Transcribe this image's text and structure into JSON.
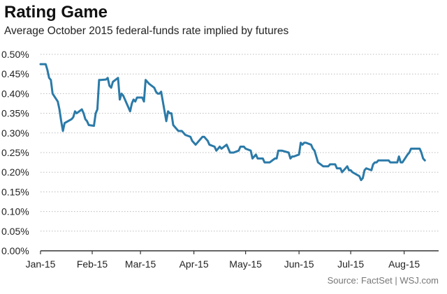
{
  "title": "Rating Game",
  "subtitle": "Average October 2015 federal-funds rate implied by futures",
  "source": "Source: FactSet  |  WSJ.com",
  "colors": {
    "line": "#2b7aa8",
    "grid": "#bbbbbb",
    "axis": "#333333"
  },
  "chart_data": {
    "type": "line",
    "title": "Rating Game",
    "subtitle": "Average October 2015 federal-funds rate implied by futures",
    "xlabel": "",
    "ylabel": "",
    "ylim": [
      0,
      0.5
    ],
    "grid": "horizontal dotted",
    "yticks": [
      0.0,
      0.05,
      0.1,
      0.15,
      0.2,
      0.25,
      0.3,
      0.35,
      0.4,
      0.45,
      0.5
    ],
    "ytick_labels": [
      "0.00%",
      "0.05%",
      "0.10%",
      "0.15%",
      "0.20%",
      "0.25%",
      "0.30%",
      "0.35%",
      "0.40%",
      "0.45%",
      "0.50%"
    ],
    "xticks": [
      "Jan-15",
      "Feb-15",
      "Mar-15",
      "Apr-15",
      "May-15",
      "Jun-15",
      "Jul-15",
      "Aug-15"
    ],
    "x_start": "2015-01-02",
    "x_end": "2015-08-21",
    "series": [
      {
        "points": [
          [
            "2015-01-02",
            0.475
          ],
          [
            "2015-01-05",
            0.475
          ],
          [
            "2015-01-06",
            0.46
          ],
          [
            "2015-01-07",
            0.44
          ],
          [
            "2015-01-08",
            0.435
          ],
          [
            "2015-01-09",
            0.4
          ],
          [
            "2015-01-12",
            0.38
          ],
          [
            "2015-01-13",
            0.36
          ],
          [
            "2015-01-14",
            0.33
          ],
          [
            "2015-01-15",
            0.305
          ],
          [
            "2015-01-16",
            0.325
          ],
          [
            "2015-01-20",
            0.335
          ],
          [
            "2015-01-21",
            0.34
          ],
          [
            "2015-01-22",
            0.355
          ],
          [
            "2015-01-23",
            0.35
          ],
          [
            "2015-01-26",
            0.36
          ],
          [
            "2015-01-27",
            0.35
          ],
          [
            "2015-01-28",
            0.335
          ],
          [
            "2015-01-29",
            0.33
          ],
          [
            "2015-01-30",
            0.32
          ],
          [
            "2015-02-02",
            0.318
          ],
          [
            "2015-02-03",
            0.35
          ],
          [
            "2015-02-04",
            0.36
          ],
          [
            "2015-02-05",
            0.435
          ],
          [
            "2015-02-06",
            0.435
          ],
          [
            "2015-02-09",
            0.436
          ],
          [
            "2015-02-10",
            0.44
          ],
          [
            "2015-02-11",
            0.42
          ],
          [
            "2015-02-12",
            0.415
          ],
          [
            "2015-02-13",
            0.43
          ],
          [
            "2015-02-16",
            0.44
          ],
          [
            "2015-02-17",
            0.385
          ],
          [
            "2015-02-18",
            0.4
          ],
          [
            "2015-02-19",
            0.395
          ],
          [
            "2015-02-20",
            0.385
          ],
          [
            "2015-02-23",
            0.355
          ],
          [
            "2015-02-24",
            0.375
          ],
          [
            "2015-02-25",
            0.385
          ],
          [
            "2015-02-26",
            0.38
          ],
          [
            "2015-02-27",
            0.39
          ],
          [
            "2015-03-02",
            0.39
          ],
          [
            "2015-03-03",
            0.38
          ],
          [
            "2015-03-04",
            0.435
          ],
          [
            "2015-03-05",
            0.43
          ],
          [
            "2015-03-06",
            0.425
          ],
          [
            "2015-03-09",
            0.415
          ],
          [
            "2015-03-10",
            0.405
          ],
          [
            "2015-03-11",
            0.4
          ],
          [
            "2015-03-12",
            0.4
          ],
          [
            "2015-03-13",
            0.405
          ],
          [
            "2015-03-16",
            0.33
          ],
          [
            "2015-03-17",
            0.355
          ],
          [
            "2015-03-18",
            0.35
          ],
          [
            "2015-03-19",
            0.35
          ],
          [
            "2015-03-20",
            0.32
          ],
          [
            "2015-03-23",
            0.305
          ],
          [
            "2015-03-24",
            0.305
          ],
          [
            "2015-03-25",
            0.305
          ],
          [
            "2015-03-26",
            0.3
          ],
          [
            "2015-03-27",
            0.295
          ],
          [
            "2015-03-30",
            0.29
          ],
          [
            "2015-03-31",
            0.28
          ],
          [
            "2015-04-01",
            0.275
          ],
          [
            "2015-04-02",
            0.27
          ],
          [
            "2015-04-06",
            0.29
          ],
          [
            "2015-04-07",
            0.29
          ],
          [
            "2015-04-08",
            0.285
          ],
          [
            "2015-04-09",
            0.28
          ],
          [
            "2015-04-10",
            0.27
          ],
          [
            "2015-04-13",
            0.265
          ],
          [
            "2015-04-14",
            0.255
          ],
          [
            "2015-04-15",
            0.26
          ],
          [
            "2015-04-16",
            0.265
          ],
          [
            "2015-04-17",
            0.26
          ],
          [
            "2015-04-20",
            0.27
          ],
          [
            "2015-04-21",
            0.26
          ],
          [
            "2015-04-22",
            0.25
          ],
          [
            "2015-04-23",
            0.25
          ],
          [
            "2015-04-24",
            0.25
          ],
          [
            "2015-04-27",
            0.255
          ],
          [
            "2015-04-28",
            0.265
          ],
          [
            "2015-04-29",
            0.265
          ],
          [
            "2015-04-30",
            0.265
          ],
          [
            "2015-05-01",
            0.26
          ],
          [
            "2015-05-04",
            0.255
          ],
          [
            "2015-05-05",
            0.235
          ],
          [
            "2015-05-06",
            0.24
          ],
          [
            "2015-05-07",
            0.245
          ],
          [
            "2015-05-08",
            0.235
          ],
          [
            "2015-05-11",
            0.235
          ],
          [
            "2015-05-12",
            0.225
          ],
          [
            "2015-05-13",
            0.225
          ],
          [
            "2015-05-14",
            0.225
          ],
          [
            "2015-05-15",
            0.225
          ],
          [
            "2015-05-18",
            0.235
          ],
          [
            "2015-05-19",
            0.235
          ],
          [
            "2015-05-20",
            0.255
          ],
          [
            "2015-05-21",
            0.255
          ],
          [
            "2015-05-22",
            0.255
          ],
          [
            "2015-05-26",
            0.25
          ],
          [
            "2015-05-27",
            0.235
          ],
          [
            "2015-05-28",
            0.24
          ],
          [
            "2015-05-29",
            0.24
          ],
          [
            "2015-06-01",
            0.245
          ],
          [
            "2015-06-02",
            0.275
          ],
          [
            "2015-06-03",
            0.27
          ],
          [
            "2015-06-04",
            0.275
          ],
          [
            "2015-06-05",
            0.275
          ],
          [
            "2015-06-08",
            0.27
          ],
          [
            "2015-06-09",
            0.26
          ],
          [
            "2015-06-10",
            0.255
          ],
          [
            "2015-06-11",
            0.24
          ],
          [
            "2015-06-12",
            0.225
          ],
          [
            "2015-06-15",
            0.215
          ],
          [
            "2015-06-16",
            0.215
          ],
          [
            "2015-06-17",
            0.215
          ],
          [
            "2015-06-18",
            0.215
          ],
          [
            "2015-06-19",
            0.22
          ],
          [
            "2015-06-22",
            0.22
          ],
          [
            "2015-06-23",
            0.21
          ],
          [
            "2015-06-24",
            0.21
          ],
          [
            "2015-06-25",
            0.21
          ],
          [
            "2015-06-26",
            0.2
          ],
          [
            "2015-06-29",
            0.215
          ],
          [
            "2015-06-30",
            0.205
          ],
          [
            "2015-07-01",
            0.205
          ],
          [
            "2015-07-02",
            0.2
          ],
          [
            "2015-07-06",
            0.19
          ],
          [
            "2015-07-07",
            0.18
          ],
          [
            "2015-07-08",
            0.185
          ],
          [
            "2015-07-09",
            0.205
          ],
          [
            "2015-07-10",
            0.21
          ],
          [
            "2015-07-13",
            0.205
          ],
          [
            "2015-07-14",
            0.22
          ],
          [
            "2015-07-15",
            0.225
          ],
          [
            "2015-07-16",
            0.225
          ],
          [
            "2015-07-17",
            0.23
          ],
          [
            "2015-07-20",
            0.23
          ],
          [
            "2015-07-21",
            0.23
          ],
          [
            "2015-07-22",
            0.23
          ],
          [
            "2015-07-23",
            0.23
          ],
          [
            "2015-07-24",
            0.225
          ],
          [
            "2015-07-27",
            0.225
          ],
          [
            "2015-07-28",
            0.225
          ],
          [
            "2015-07-29",
            0.24
          ],
          [
            "2015-07-30",
            0.225
          ],
          [
            "2015-07-31",
            0.225
          ],
          [
            "2015-08-03",
            0.245
          ],
          [
            "2015-08-04",
            0.25
          ],
          [
            "2015-08-05",
            0.26
          ],
          [
            "2015-08-06",
            0.26
          ],
          [
            "2015-08-07",
            0.26
          ],
          [
            "2015-08-10",
            0.26
          ],
          [
            "2015-08-11",
            0.25
          ],
          [
            "2015-08-12",
            0.235
          ],
          [
            "2015-08-13",
            0.23
          ]
        ]
      }
    ]
  }
}
